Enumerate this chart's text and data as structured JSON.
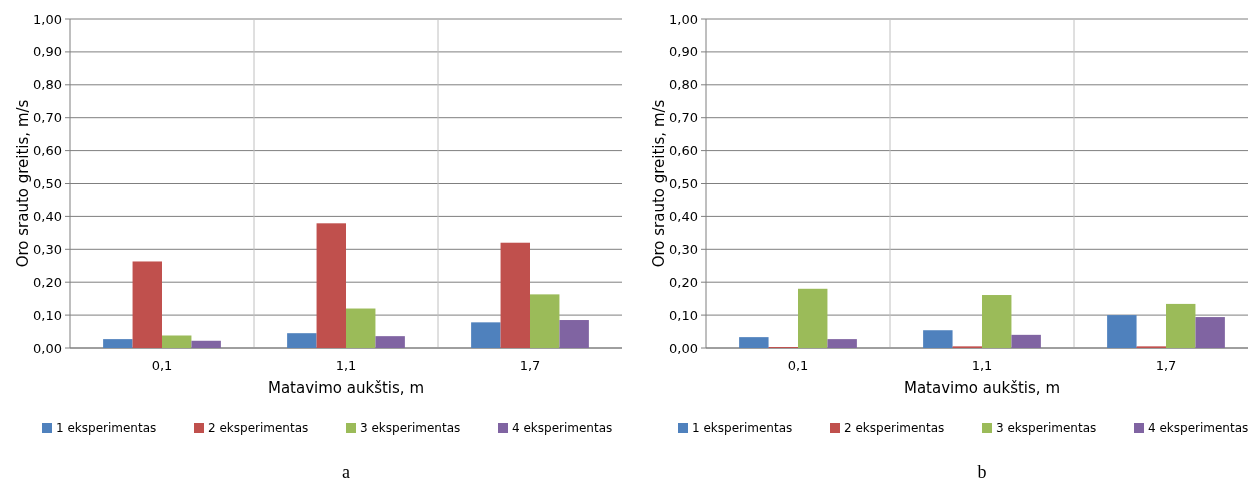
{
  "chart_data": [
    {
      "type": "bar",
      "xlabel": "Matavimo aukštis, m",
      "ylabel": "Oro srauto greitis, m/s",
      "categories": [
        "0,1",
        "1,1",
        "1,7"
      ],
      "series": [
        {
          "name": "1 eksperimentas",
          "color": "#4f81bd",
          "values": [
            0.027,
            0.045,
            0.078
          ]
        },
        {
          "name": "2 eksperimentas",
          "color": "#c0504d",
          "values": [
            0.263,
            0.379,
            0.32
          ]
        },
        {
          "name": "3 eksperimentas",
          "color": "#9bbb59",
          "values": [
            0.038,
            0.12,
            0.163
          ]
        },
        {
          "name": "4 eksperimentas",
          "color": "#8064a2",
          "values": [
            0.022,
            0.036,
            0.085
          ]
        }
      ],
      "ylim": [
        0,
        1
      ],
      "yticks": [
        {
          "value": 0,
          "label": "0,00"
        },
        {
          "value": 0.1,
          "label": "0,10"
        },
        {
          "value": 0.2,
          "label": "0,20"
        },
        {
          "value": 0.3,
          "label": "0,30"
        },
        {
          "value": 0.4,
          "label": "0,40"
        },
        {
          "value": 0.5,
          "label": "0,50"
        },
        {
          "value": 0.6,
          "label": "0,60"
        },
        {
          "value": 0.7,
          "label": "0,70"
        },
        {
          "value": 0.8,
          "label": "0,80"
        },
        {
          "value": 0.9,
          "label": "0,90"
        },
        {
          "value": 1,
          "label": "1,00"
        }
      ],
      "grid": "y",
      "legend": "bottom",
      "annotations": [
        "a"
      ]
    },
    {
      "type": "bar",
      "xlabel": "Matavimo aukštis, m",
      "ylabel": "Oro srauto greitis, m/s",
      "categories": [
        "0,1",
        "1,1",
        "1,7"
      ],
      "series": [
        {
          "name": "1 eksperimentas",
          "color": "#4f81bd",
          "values": [
            0.033,
            0.054,
            0.1
          ]
        },
        {
          "name": "2 eksperimentas",
          "color": "#c0504d",
          "values": [
            0.003,
            0.005,
            0.005
          ]
        },
        {
          "name": "3 eksperimentas",
          "color": "#9bbb59",
          "values": [
            0.18,
            0.161,
            0.134
          ]
        },
        {
          "name": "4 eksperimentas",
          "color": "#8064a2",
          "values": [
            0.027,
            0.04,
            0.094
          ]
        }
      ],
      "ylim": [
        0,
        1
      ],
      "yticks": [
        {
          "value": 0,
          "label": "0,00"
        },
        {
          "value": 0.1,
          "label": "0,10"
        },
        {
          "value": 0.2,
          "label": "0,20"
        },
        {
          "value": 0.3,
          "label": "0,30"
        },
        {
          "value": 0.4,
          "label": "0,40"
        },
        {
          "value": 0.5,
          "label": "0,50"
        },
        {
          "value": 0.6,
          "label": "0,60"
        },
        {
          "value": 0.7,
          "label": "0,70"
        },
        {
          "value": 0.8,
          "label": "0,80"
        },
        {
          "value": 0.9,
          "label": "0,90"
        },
        {
          "value": 1,
          "label": "1,00"
        }
      ],
      "grid": "y",
      "legend": "bottom",
      "annotations": [
        "b"
      ]
    }
  ]
}
